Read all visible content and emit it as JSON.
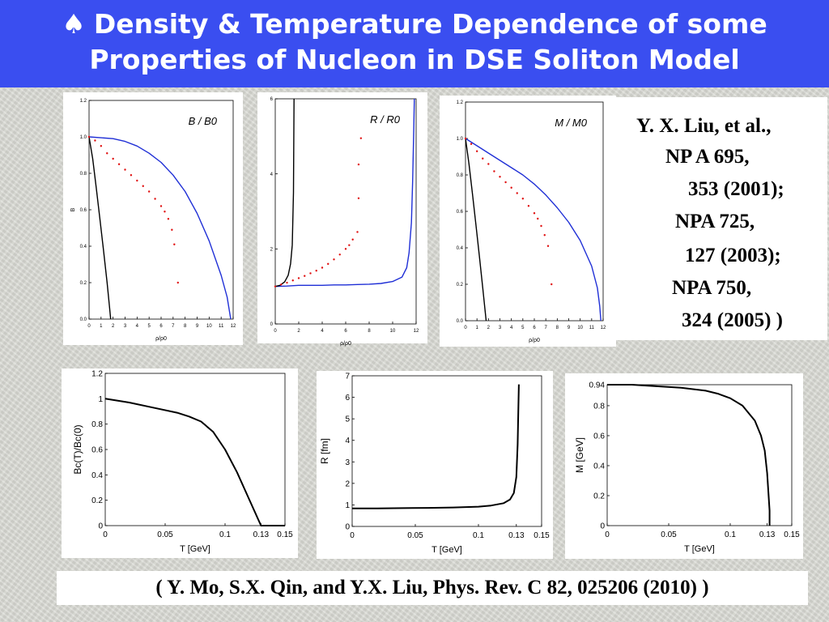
{
  "slide": {
    "title_bullet": "♠",
    "title_line1": "Density & Temperature Dependence of some",
    "title_line2": "Properties of Nucleon in DSE Soliton Model",
    "reference_lines": [
      "Y. X. Liu, et al.,",
      "NP A 695,",
      "353 (2001);",
      "NPA 725,",
      "127 (2003);",
      "NPA 750,",
      "324 (2005) )"
    ],
    "citation": "( Y. Mo, S.X. Qin, and  Y.X. Liu,  Phys. Rev. C 82, 025206 (2010) )"
  },
  "colors": {
    "title_bg": "#3a4ef0",
    "blue_curve": "#1f2fd6",
    "red_points": "#e01010",
    "black_curve": "#000000"
  },
  "chart_data": [
    {
      "type": "line",
      "annotation": "B / B0",
      "ylabel": "B",
      "xlabel": "ρ/ρ0",
      "xlim": [
        0,
        12
      ],
      "ylim": [
        0,
        1.2
      ],
      "xticks": [
        "0",
        "1",
        "2",
        "3",
        "4",
        "5",
        "6",
        "7",
        "8",
        "9",
        "10",
        "11",
        "12"
      ],
      "yticks": [
        "0.0",
        "0.2",
        "0.4",
        "0.6",
        "0.8",
        "1.0",
        "1.2"
      ],
      "series": [
        {
          "color": "blue",
          "style": "line",
          "x": [
            0,
            1,
            2,
            3,
            4,
            5,
            6,
            7,
            8,
            9,
            10,
            11,
            11.5,
            11.8
          ],
          "y": [
            1.0,
            0.995,
            0.99,
            0.975,
            0.95,
            0.91,
            0.86,
            0.79,
            0.7,
            0.58,
            0.43,
            0.24,
            0.12,
            0.0
          ]
        },
        {
          "color": "black",
          "style": "line",
          "x": [
            0,
            0.3,
            0.6,
            0.9,
            1.2,
            1.5,
            1.7,
            1.8
          ],
          "y": [
            1.0,
            0.88,
            0.72,
            0.55,
            0.38,
            0.2,
            0.07,
            0.0
          ]
        },
        {
          "color": "red",
          "style": "points",
          "x": [
            0,
            0.5,
            1,
            1.5,
            2,
            2.5,
            3,
            3.5,
            4,
            4.5,
            5,
            5.5,
            6,
            6.3,
            6.6,
            6.9,
            7.1,
            7.4
          ],
          "y": [
            1.0,
            0.98,
            0.95,
            0.91,
            0.88,
            0.85,
            0.82,
            0.79,
            0.76,
            0.73,
            0.7,
            0.66,
            0.62,
            0.59,
            0.55,
            0.49,
            0.41,
            0.2
          ]
        }
      ]
    },
    {
      "type": "line",
      "annotation": "R / R0",
      "xlabel": "ρ/ρ0",
      "xlim": [
        0,
        12
      ],
      "ylim": [
        0,
        6
      ],
      "xticks": [
        "0",
        "2",
        "4",
        "6",
        "8",
        "10",
        "12"
      ],
      "yticks": [
        "0",
        "2",
        "4",
        "6"
      ],
      "series": [
        {
          "color": "blue",
          "style": "line",
          "x": [
            0,
            1,
            2,
            3,
            4,
            5,
            6,
            7,
            8,
            9,
            10,
            10.8,
            11.2,
            11.4,
            11.6,
            11.7,
            11.8,
            11.85
          ],
          "y": [
            1.0,
            1.01,
            1.03,
            1.03,
            1.03,
            1.04,
            1.04,
            1.05,
            1.06,
            1.08,
            1.13,
            1.25,
            1.5,
            1.9,
            2.7,
            3.8,
            5.2,
            6.0
          ]
        },
        {
          "color": "black",
          "style": "line",
          "x": [
            0,
            0.4,
            0.8,
            1.1,
            1.3,
            1.45,
            1.55,
            1.6
          ],
          "y": [
            1.0,
            1.03,
            1.12,
            1.3,
            1.6,
            2.1,
            3.5,
            6.0
          ]
        },
        {
          "color": "red",
          "style": "points",
          "x": [
            0,
            0.5,
            1,
            1.5,
            2,
            2.5,
            3,
            3.5,
            4,
            4.5,
            5,
            5.5,
            6,
            6.3,
            6.6,
            7.0,
            7.1,
            7.1,
            7.3
          ],
          "y": [
            1.0,
            1.05,
            1.1,
            1.16,
            1.22,
            1.28,
            1.35,
            1.42,
            1.5,
            1.6,
            1.72,
            1.85,
            2.0,
            2.1,
            2.25,
            2.45,
            3.35,
            4.25,
            4.95
          ]
        }
      ]
    },
    {
      "type": "line",
      "annotation": "M / M0",
      "xlabel": "ρ/ρ0",
      "xlim": [
        0,
        12
      ],
      "ylim": [
        0,
        1.2
      ],
      "xticks": [
        "0",
        "1",
        "2",
        "3",
        "4",
        "5",
        "6",
        "7",
        "8",
        "9",
        "10",
        "11",
        "12"
      ],
      "yticks": [
        "0.0",
        "0.2",
        "0.4",
        "0.6",
        "0.8",
        "1.0",
        "1.2"
      ],
      "series": [
        {
          "color": "blue",
          "style": "line",
          "x": [
            0,
            1,
            2,
            3,
            4,
            5,
            6,
            7,
            8,
            9,
            10,
            11,
            11.5,
            11.7,
            11.8
          ],
          "y": [
            1.0,
            0.96,
            0.92,
            0.88,
            0.84,
            0.8,
            0.75,
            0.69,
            0.62,
            0.54,
            0.44,
            0.3,
            0.18,
            0.08,
            0.0
          ]
        },
        {
          "color": "black",
          "style": "line",
          "x": [
            0,
            0.3,
            0.6,
            0.9,
            1.2,
            1.5,
            1.7,
            1.8
          ],
          "y": [
            1.0,
            0.86,
            0.7,
            0.53,
            0.36,
            0.18,
            0.06,
            0.0
          ]
        },
        {
          "color": "red",
          "style": "points",
          "x": [
            0,
            0.5,
            1,
            1.5,
            2,
            2.5,
            3,
            3.5,
            4,
            4.5,
            5,
            5.5,
            6,
            6.3,
            6.6,
            6.9,
            7.2,
            7.5
          ],
          "y": [
            1.0,
            0.97,
            0.93,
            0.89,
            0.86,
            0.82,
            0.79,
            0.76,
            0.73,
            0.7,
            0.67,
            0.63,
            0.59,
            0.56,
            0.52,
            0.47,
            0.41,
            0.2
          ]
        }
      ]
    },
    {
      "type": "line",
      "ylabel": "Bc(T)/Bc(0)",
      "xlabel": "T [GeV]",
      "xlim": [
        0,
        0.15
      ],
      "ylim": [
        0,
        1.2
      ],
      "xticks": [
        "0",
        "0.05",
        "0.1",
        "0.13",
        "0.15"
      ],
      "yticks": [
        "0",
        "0.2",
        "0.4",
        "0.6",
        "0.8",
        "1",
        "1.2"
      ],
      "series": [
        {
          "color": "black",
          "style": "line",
          "x": [
            0,
            0.02,
            0.04,
            0.06,
            0.07,
            0.08,
            0.09,
            0.1,
            0.11,
            0.12,
            0.13,
            0.15
          ],
          "y": [
            1.0,
            0.97,
            0.93,
            0.89,
            0.86,
            0.82,
            0.74,
            0.6,
            0.42,
            0.21,
            0.0,
            0.0
          ]
        }
      ]
    },
    {
      "type": "line",
      "ylabel": "R [fm]",
      "xlabel": "T [GeV]",
      "xlim": [
        0,
        0.15
      ],
      "ylim": [
        0,
        7
      ],
      "xticks": [
        "0",
        "0.05",
        "0.1",
        "0.13",
        "0.15"
      ],
      "yticks": [
        "0",
        "1",
        "2",
        "3",
        "4",
        "5",
        "6",
        "7"
      ],
      "series": [
        {
          "color": "black",
          "style": "line",
          "x": [
            0,
            0.02,
            0.04,
            0.06,
            0.08,
            0.1,
            0.11,
            0.12,
            0.125,
            0.128,
            0.13,
            0.131,
            0.132
          ],
          "y": [
            0.84,
            0.84,
            0.85,
            0.86,
            0.88,
            0.92,
            0.97,
            1.08,
            1.25,
            1.55,
            2.3,
            3.8,
            6.6
          ]
        }
      ]
    },
    {
      "type": "line",
      "ylabel": "M [GeV]",
      "xlabel": "T [GeV]",
      "xlim": [
        0,
        0.15
      ],
      "ylim": [
        0,
        0.94
      ],
      "xticks": [
        "0",
        "0.05",
        "0.1",
        "0.13",
        "0.15"
      ],
      "yticks": [
        "0",
        "0.2",
        "0.4",
        "0.6",
        "0.8",
        "0.94"
      ],
      "series": [
        {
          "color": "black",
          "style": "line",
          "x": [
            0,
            0.02,
            0.04,
            0.06,
            0.08,
            0.09,
            0.1,
            0.11,
            0.12,
            0.125,
            0.128,
            0.13,
            0.132,
            0.132
          ],
          "y": [
            0.94,
            0.94,
            0.93,
            0.92,
            0.9,
            0.88,
            0.85,
            0.8,
            0.7,
            0.6,
            0.5,
            0.35,
            0.1,
            0.0
          ]
        }
      ]
    }
  ]
}
